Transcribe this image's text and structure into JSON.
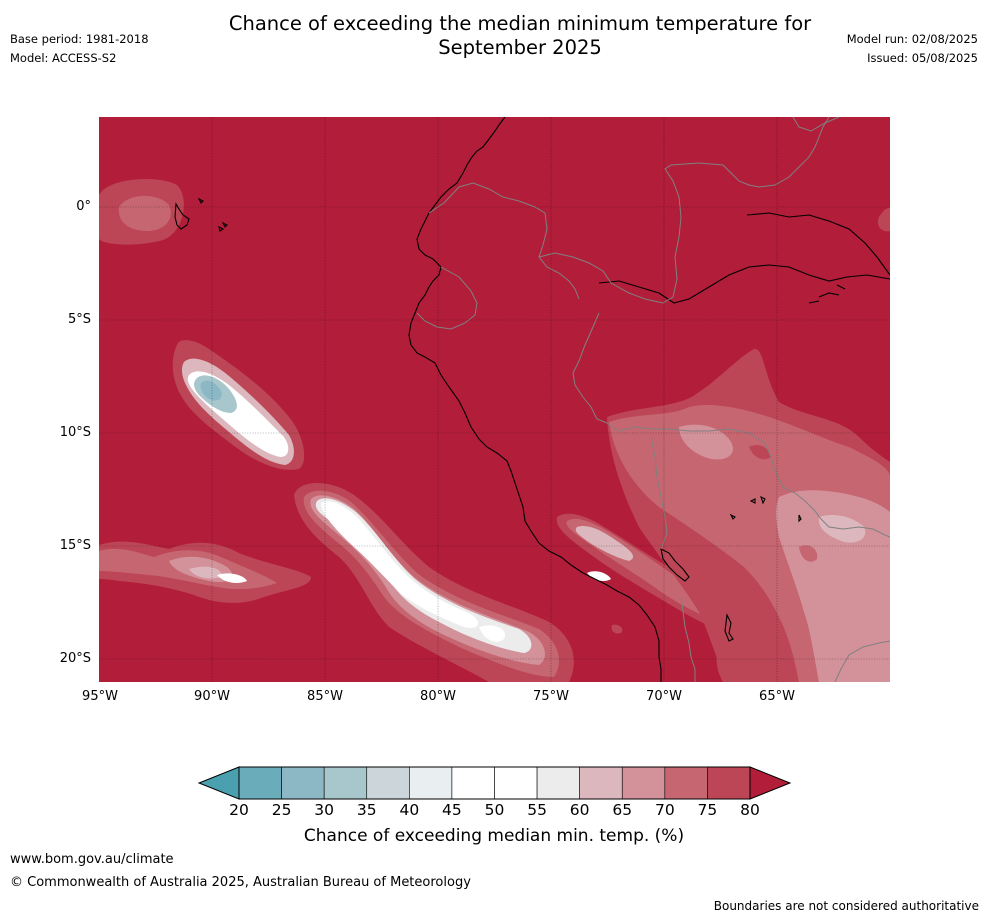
{
  "title_line1": "Chance of exceeding the median minimum temperature for",
  "title_line2": "September 2025",
  "base_period": "Base period: 1981-2018",
  "model": "Model: ACCESS-S2",
  "model_run": "Model run: 02/08/2025",
  "issued": "Issued: 05/08/2025",
  "lat_labels": [
    "0°",
    "5°S",
    "10°S",
    "15°S",
    "20°S"
  ],
  "lon_labels": [
    "95°W",
    "90°W",
    "85°W",
    "80°W",
    "75°W",
    "70°W",
    "65°W"
  ],
  "colorbar": {
    "ticks": [
      "20",
      "25",
      "30",
      "35",
      "40",
      "45",
      "50",
      "55",
      "60",
      "65",
      "70",
      "75",
      "80"
    ],
    "colors": [
      "#6aacb9",
      "#8cb8c5",
      "#a8c7cd",
      "#ccd6da",
      "#e9eef1",
      "#ffffff",
      "#ffffff",
      "#ececec",
      "#dcb7bd",
      "#d3919a",
      "#c56671",
      "#bc4656"
    ],
    "under_color": "#4aa0ae",
    "over_color": "#b21d3a",
    "label": "Chance of exceeding median min. temp. (%)"
  },
  "map_colors": {
    "background": "#b21d3a",
    "p75": "#bc4656",
    "p70": "#c56671",
    "p65": "#d3919a",
    "p60": "#dcb7bd",
    "p55": "#ececec",
    "p45": "#ffffff",
    "p35": "#a8c7cd",
    "p30": "#8cb8c5",
    "coast": "#000000",
    "border": "#808080"
  },
  "footer": {
    "url": "www.bom.gov.au/climate",
    "copyright": "© Commonwealth of Australia 2025, Australian Bureau of Meteorology",
    "disclaimer": "Boundaries are not considered authoritative"
  }
}
